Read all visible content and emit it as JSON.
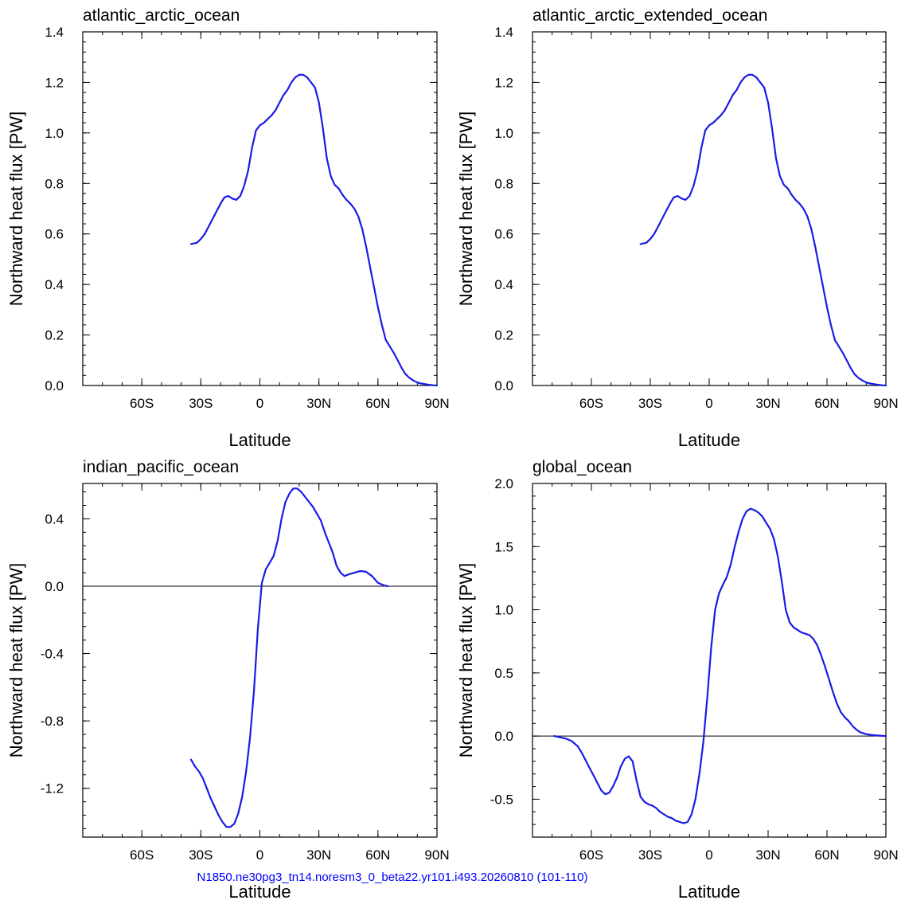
{
  "footer": {
    "caption": "N1850.ne30pg3_tn14.noresm3_0_beta22.yr101.i493.20260810 (101-110)"
  },
  "colors": {
    "series": "#1a1ae6",
    "axis": "#000000",
    "footer": "#0000ff"
  },
  "chart_data": [
    {
      "type": "line",
      "title": "atlantic_arctic_ocean",
      "xlabel": "Latitude",
      "ylabel": "Northward heat flux [PW]",
      "xlim": [
        -90,
        90
      ],
      "ylim": [
        0,
        1.4
      ],
      "xticks": [
        -60,
        -30,
        0,
        30,
        60,
        90
      ],
      "xtick_labels": [
        "60S",
        "30S",
        "0",
        "30N",
        "60N",
        "90N"
      ],
      "yticks": [
        0,
        0.2,
        0.4,
        0.6,
        0.8,
        1.0,
        1.2,
        1.4
      ],
      "ytick_labels": [
        "0.0",
        "0.2",
        "0.4",
        "0.6",
        "0.8",
        "1.0",
        "1.2",
        "1.4"
      ],
      "zero_line": false,
      "grid": false,
      "series": [
        {
          "x": [
            -35,
            -32,
            -30,
            -28,
            -26,
            -24,
            -22,
            -20,
            -18,
            -16,
            -14,
            -12,
            -10,
            -8,
            -6,
            -4,
            -2,
            0,
            2,
            4,
            6,
            8,
            10,
            12,
            14,
            16,
            18,
            20,
            22,
            24,
            26,
            28,
            30,
            32,
            34,
            36,
            38,
            40,
            42,
            44,
            46,
            48,
            50,
            52,
            54,
            56,
            58,
            60,
            62,
            64,
            66,
            68,
            70,
            72,
            74,
            76,
            78,
            80,
            82,
            85,
            88,
            90
          ],
          "y": [
            0.56,
            0.565,
            0.58,
            0.6,
            0.63,
            0.66,
            0.69,
            0.72,
            0.745,
            0.75,
            0.74,
            0.735,
            0.75,
            0.79,
            0.85,
            0.94,
            1.01,
            1.03,
            1.04,
            1.055,
            1.07,
            1.09,
            1.12,
            1.15,
            1.17,
            1.2,
            1.22,
            1.23,
            1.23,
            1.22,
            1.2,
            1.18,
            1.12,
            1.02,
            0.9,
            0.83,
            0.795,
            0.78,
            0.755,
            0.735,
            0.72,
            0.7,
            0.67,
            0.62,
            0.55,
            0.47,
            0.39,
            0.31,
            0.24,
            0.18,
            0.155,
            0.13,
            0.1,
            0.07,
            0.045,
            0.03,
            0.02,
            0.012,
            0.008,
            0.004,
            0.001,
            0.0
          ]
        }
      ]
    },
    {
      "type": "line",
      "title": "atlantic_arctic_extended_ocean",
      "xlabel": "Latitude",
      "ylabel": "Northward heat flux [PW]",
      "xlim": [
        -90,
        90
      ],
      "ylim": [
        0,
        1.4
      ],
      "xticks": [
        -60,
        -30,
        0,
        30,
        60,
        90
      ],
      "xtick_labels": [
        "60S",
        "30S",
        "0",
        "30N",
        "60N",
        "90N"
      ],
      "yticks": [
        0,
        0.2,
        0.4,
        0.6,
        0.8,
        1.0,
        1.2,
        1.4
      ],
      "ytick_labels": [
        "0.0",
        "0.2",
        "0.4",
        "0.6",
        "0.8",
        "1.0",
        "1.2",
        "1.4"
      ],
      "zero_line": false,
      "grid": false,
      "series": [
        {
          "x": [
            -35,
            -32,
            -30,
            -28,
            -26,
            -24,
            -22,
            -20,
            -18,
            -16,
            -14,
            -12,
            -10,
            -8,
            -6,
            -4,
            -2,
            0,
            2,
            4,
            6,
            8,
            10,
            12,
            14,
            16,
            18,
            20,
            22,
            24,
            26,
            28,
            30,
            32,
            34,
            36,
            38,
            40,
            42,
            44,
            46,
            48,
            50,
            52,
            54,
            56,
            58,
            60,
            62,
            64,
            66,
            68,
            70,
            72,
            74,
            76,
            78,
            80,
            82,
            85,
            88,
            90
          ],
          "y": [
            0.56,
            0.565,
            0.58,
            0.6,
            0.63,
            0.66,
            0.69,
            0.72,
            0.745,
            0.75,
            0.74,
            0.735,
            0.75,
            0.79,
            0.85,
            0.94,
            1.01,
            1.03,
            1.04,
            1.055,
            1.07,
            1.09,
            1.12,
            1.15,
            1.17,
            1.2,
            1.22,
            1.23,
            1.23,
            1.22,
            1.2,
            1.18,
            1.12,
            1.02,
            0.9,
            0.83,
            0.795,
            0.78,
            0.755,
            0.735,
            0.72,
            0.7,
            0.67,
            0.62,
            0.55,
            0.47,
            0.39,
            0.31,
            0.24,
            0.18,
            0.155,
            0.13,
            0.1,
            0.07,
            0.045,
            0.03,
            0.02,
            0.012,
            0.008,
            0.004,
            0.001,
            0.0
          ]
        }
      ]
    },
    {
      "type": "line",
      "title": "indian_pacific_ocean",
      "xlabel": "Latitude",
      "ylabel": "Northward heat flux [PW]",
      "xlim": [
        -90,
        90
      ],
      "ylim": [
        -1.49,
        0.61
      ],
      "xticks": [
        -60,
        -30,
        0,
        30,
        60,
        90
      ],
      "xtick_labels": [
        "60S",
        "30S",
        "0",
        "30N",
        "60N",
        "90N"
      ],
      "yticks": [
        -1.2,
        -0.8,
        -0.4,
        0.0,
        0.4
      ],
      "ytick_labels": [
        "-1.2",
        "-0.8",
        "-0.4",
        "0.0",
        "0.4"
      ],
      "zero_line": true,
      "grid": false,
      "series": [
        {
          "x": [
            -35,
            -33,
            -31,
            -29,
            -27,
            -25,
            -23,
            -21,
            -19,
            -17,
            -15,
            -13,
            -11,
            -9,
            -7,
            -5,
            -3,
            -1,
            1,
            3,
            5,
            7,
            9,
            11,
            13,
            15,
            17,
            19,
            21,
            23,
            25,
            27,
            29,
            31,
            33,
            35,
            37,
            39,
            41,
            43,
            45,
            48,
            51,
            54,
            57,
            60,
            63,
            65
          ],
          "y": [
            -1.03,
            -1.07,
            -1.1,
            -1.14,
            -1.2,
            -1.26,
            -1.31,
            -1.36,
            -1.4,
            -1.43,
            -1.43,
            -1.41,
            -1.35,
            -1.25,
            -1.1,
            -0.9,
            -0.62,
            -0.25,
            0.02,
            0.1,
            0.14,
            0.18,
            0.27,
            0.4,
            0.5,
            0.55,
            0.58,
            0.58,
            0.56,
            0.53,
            0.5,
            0.47,
            0.43,
            0.39,
            0.32,
            0.26,
            0.2,
            0.12,
            0.08,
            0.06,
            0.07,
            0.08,
            0.09,
            0.085,
            0.06,
            0.02,
            0.005,
            0.0
          ]
        }
      ]
    },
    {
      "type": "line",
      "title": "global_ocean",
      "xlabel": "Latitude",
      "ylabel": "Northward heat flux [PW]",
      "xlim": [
        -90,
        90
      ],
      "ylim": [
        -0.8,
        2.0
      ],
      "xticks": [
        -60,
        -30,
        0,
        30,
        60,
        90
      ],
      "xtick_labels": [
        "60S",
        "30S",
        "0",
        "30N",
        "60N",
        "90N"
      ],
      "yticks": [
        -0.5,
        0.0,
        0.5,
        1.0,
        1.5,
        2.0
      ],
      "ytick_labels": [
        "-0.5",
        "0.0",
        "0.5",
        "1.0",
        "1.5",
        "2.0"
      ],
      "zero_line": true,
      "grid": false,
      "series": [
        {
          "x": [
            -79,
            -76,
            -73,
            -70,
            -67,
            -65,
            -63,
            -61,
            -59,
            -57,
            -55,
            -53,
            -51,
            -49,
            -47,
            -45,
            -43,
            -41,
            -39,
            -37,
            -35,
            -33,
            -31,
            -29,
            -27,
            -25,
            -23,
            -21,
            -19,
            -17,
            -15,
            -13,
            -11,
            -9,
            -7,
            -5,
            -3,
            -1,
            1,
            3,
            5,
            7,
            9,
            11,
            13,
            15,
            17,
            19,
            21,
            23,
            25,
            27,
            29,
            31,
            33,
            35,
            37,
            39,
            41,
            43,
            45,
            47,
            49,
            51,
            53,
            55,
            57,
            59,
            61,
            63,
            65,
            67,
            69,
            71,
            73,
            75,
            77,
            80,
            83,
            86,
            90
          ],
          "y": [
            0.0,
            -0.01,
            -0.02,
            -0.04,
            -0.08,
            -0.13,
            -0.19,
            -0.25,
            -0.31,
            -0.37,
            -0.43,
            -0.46,
            -0.45,
            -0.4,
            -0.33,
            -0.24,
            -0.18,
            -0.16,
            -0.2,
            -0.35,
            -0.48,
            -0.52,
            -0.54,
            -0.55,
            -0.57,
            -0.6,
            -0.62,
            -0.64,
            -0.65,
            -0.67,
            -0.68,
            -0.69,
            -0.68,
            -0.62,
            -0.5,
            -0.3,
            -0.05,
            0.3,
            0.7,
            1.0,
            1.13,
            1.2,
            1.26,
            1.36,
            1.5,
            1.62,
            1.72,
            1.78,
            1.8,
            1.79,
            1.77,
            1.74,
            1.69,
            1.64,
            1.56,
            1.42,
            1.22,
            1.0,
            0.9,
            0.86,
            0.84,
            0.82,
            0.81,
            0.8,
            0.77,
            0.72,
            0.64,
            0.55,
            0.45,
            0.35,
            0.26,
            0.19,
            0.15,
            0.12,
            0.08,
            0.05,
            0.03,
            0.015,
            0.008,
            0.004,
            0.0
          ]
        }
      ]
    }
  ]
}
